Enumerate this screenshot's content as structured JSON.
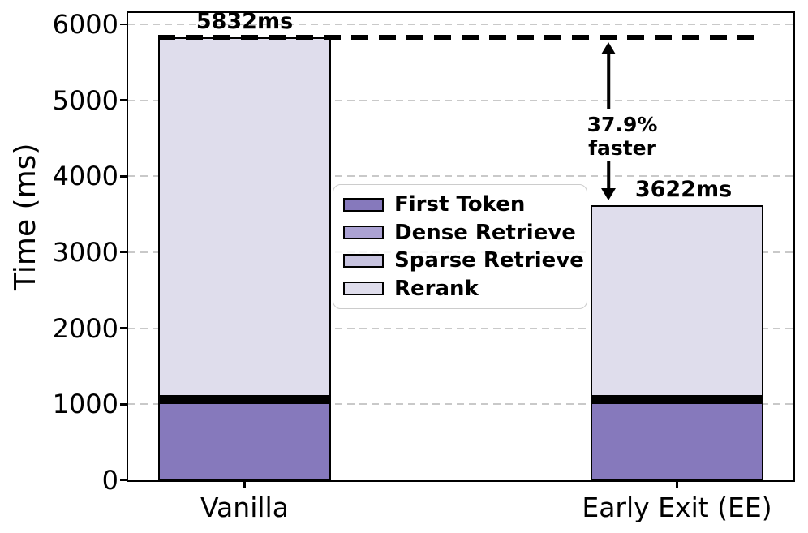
{
  "chart_data": {
    "type": "bar",
    "stacked": true,
    "title": "",
    "ylabel": "Time (ms)",
    "xlabel": "",
    "categories": [
      "Vanilla",
      "Early Exit (EE)"
    ],
    "series": [
      {
        "name": "First Token",
        "color": "#8679BC",
        "values": [
          1030,
          1030
        ]
      },
      {
        "name": "Dense Retrieve",
        "color": "#ABA2D3",
        "values": [
          35,
          35
        ]
      },
      {
        "name": "Sparse Retrieve",
        "color": "#C7C3DF",
        "values": [
          35,
          35
        ]
      },
      {
        "name": "Rerank",
        "color": "#DFDDEC",
        "values": [
          4732,
          2522
        ]
      }
    ],
    "totals": [
      5832,
      3622
    ],
    "total_labels": [
      "5832ms",
      "3622ms"
    ],
    "yticks": [
      0,
      1000,
      2000,
      3000,
      4000,
      5000,
      6000
    ],
    "ylim": [
      0,
      6150
    ],
    "grid": "horizontal-dashed",
    "legend_position": "center",
    "legend_entries": [
      "First Token",
      "Dense Retrieve",
      "Sparse Retrieve",
      "Rerank"
    ],
    "annotation": {
      "line1": "37.9%",
      "line2": "faster",
      "reference_value": 5832,
      "target_value": 3622,
      "reference_line_style": "black-dashed"
    },
    "colors": {
      "bar_edge": "#000000",
      "grid": "#c9c9c9",
      "reference_line": "#000000",
      "legend_border": "#cccccc",
      "background": "#ffffff"
    }
  }
}
